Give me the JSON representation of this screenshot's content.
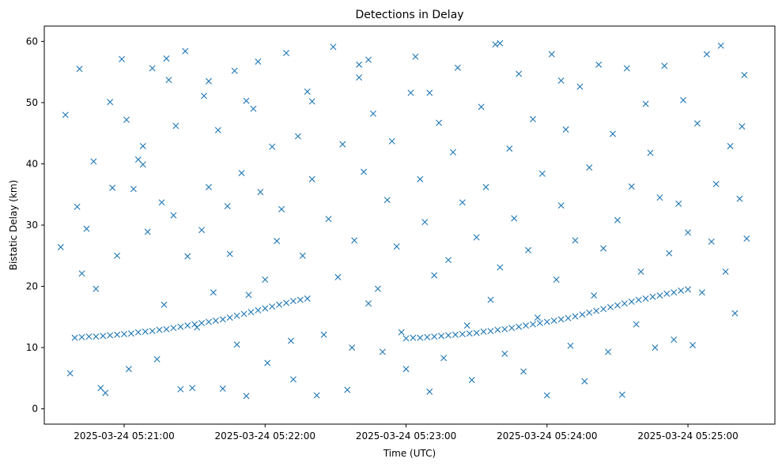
{
  "chart_data": {
    "type": "scatter",
    "title": "Detections in Delay",
    "xlabel": "Time (UTC)",
    "ylabel": "Bistatic Delay (km)",
    "x_unit": "time",
    "xlim": [
      "2025-03-24 05:20:26",
      "2025-03-24 05:25:37"
    ],
    "ylim": [
      -2.5,
      62.5
    ],
    "xticks": [
      "2025-03-24 05:21:00",
      "2025-03-24 05:22:00",
      "2025-03-24 05:23:00",
      "2025-03-24 05:24:00",
      "2025-03-24 05:25:00"
    ],
    "yticks": [
      0,
      10,
      20,
      30,
      40,
      50,
      60
    ],
    "grid": false,
    "marker": "x",
    "marker_color": "#1f77b4",
    "series": [
      {
        "points": [
          [
            "05:20:39",
            11.6
          ],
          [
            "05:20:42",
            11.7
          ],
          [
            "05:20:45",
            11.8
          ],
          [
            "05:20:48",
            11.8
          ],
          [
            "05:20:51",
            11.9
          ],
          [
            "05:20:54",
            12.0
          ],
          [
            "05:20:57",
            12.1
          ],
          [
            "05:21:00",
            12.2
          ],
          [
            "05:21:03",
            12.3
          ],
          [
            "05:21:06",
            12.5
          ],
          [
            "05:21:09",
            12.6
          ],
          [
            "05:21:12",
            12.7
          ],
          [
            "05:21:15",
            12.9
          ],
          [
            "05:21:18",
            13.0
          ],
          [
            "05:21:21",
            13.2
          ],
          [
            "05:21:24",
            13.4
          ],
          [
            "05:21:27",
            13.6
          ],
          [
            "05:21:30",
            13.8
          ],
          [
            "05:21:33",
            14.0
          ],
          [
            "05:21:36",
            14.2
          ],
          [
            "05:21:39",
            14.4
          ],
          [
            "05:21:42",
            14.6
          ],
          [
            "05:21:45",
            14.9
          ],
          [
            "05:21:48",
            15.2
          ],
          [
            "05:21:51",
            15.5
          ],
          [
            "05:21:54",
            15.8
          ],
          [
            "05:21:57",
            16.1
          ],
          [
            "05:22:00",
            16.4
          ],
          [
            "05:22:03",
            16.7
          ],
          [
            "05:22:06",
            17.0
          ],
          [
            "05:22:09",
            17.3
          ],
          [
            "05:22:12",
            17.6
          ],
          [
            "05:22:15",
            17.8
          ],
          [
            "05:22:18",
            18.0
          ],
          [
            "05:23:00",
            11.5
          ],
          [
            "05:23:03",
            11.6
          ],
          [
            "05:23:06",
            11.6
          ],
          [
            "05:23:09",
            11.7
          ],
          [
            "05:23:12",
            11.8
          ],
          [
            "05:23:15",
            11.9
          ],
          [
            "05:23:18",
            12.0
          ],
          [
            "05:23:21",
            12.1
          ],
          [
            "05:23:24",
            12.2
          ],
          [
            "05:23:27",
            12.3
          ],
          [
            "05:23:30",
            12.4
          ],
          [
            "05:23:33",
            12.6
          ],
          [
            "05:23:36",
            12.7
          ],
          [
            "05:23:39",
            12.9
          ],
          [
            "05:23:42",
            13.0
          ],
          [
            "05:23:45",
            13.2
          ],
          [
            "05:23:48",
            13.4
          ],
          [
            "05:23:51",
            13.6
          ],
          [
            "05:23:54",
            13.8
          ],
          [
            "05:23:57",
            14.0
          ],
          [
            "05:24:00",
            14.2
          ],
          [
            "05:24:03",
            14.4
          ],
          [
            "05:24:06",
            14.6
          ],
          [
            "05:24:09",
            14.8
          ],
          [
            "05:24:12",
            15.1
          ],
          [
            "05:24:15",
            15.4
          ],
          [
            "05:24:18",
            15.7
          ],
          [
            "05:24:21",
            16.0
          ],
          [
            "05:24:24",
            16.3
          ],
          [
            "05:24:27",
            16.6
          ],
          [
            "05:24:30",
            16.9
          ],
          [
            "05:24:33",
            17.2
          ],
          [
            "05:24:36",
            17.5
          ],
          [
            "05:24:39",
            17.8
          ],
          [
            "05:24:42",
            18.0
          ],
          [
            "05:24:45",
            18.3
          ],
          [
            "05:24:48",
            18.5
          ],
          [
            "05:24:51",
            18.8
          ],
          [
            "05:24:54",
            19.0
          ],
          [
            "05:24:57",
            19.3
          ],
          [
            "05:25:00",
            19.5
          ],
          [
            "05:20:33",
            26.4
          ],
          [
            "05:20:35",
            48.0
          ],
          [
            "05:20:37",
            5.8
          ],
          [
            "05:20:40",
            33.0
          ],
          [
            "05:20:41",
            55.5
          ],
          [
            "05:20:42",
            22.1
          ],
          [
            "05:20:44",
            29.4
          ],
          [
            "05:20:47",
            40.4
          ],
          [
            "05:20:48",
            19.6
          ],
          [
            "05:20:50",
            3.4
          ],
          [
            "05:20:52",
            2.6
          ],
          [
            "05:20:54",
            50.1
          ],
          [
            "05:20:55",
            36.1
          ],
          [
            "05:20:57",
            25.0
          ],
          [
            "05:20:59",
            57.1
          ],
          [
            "05:21:01",
            47.2
          ],
          [
            "05:21:02",
            6.5
          ],
          [
            "05:21:04",
            35.9
          ],
          [
            "05:21:06",
            40.7
          ],
          [
            "05:21:08",
            42.9
          ],
          [
            "05:21:10",
            28.9
          ],
          [
            "05:21:12",
            55.6
          ],
          [
            "05:21:14",
            8.1
          ],
          [
            "05:21:16",
            33.7
          ],
          [
            "05:21:17",
            17.0
          ],
          [
            "05:21:19",
            53.7
          ],
          [
            "05:21:21",
            31.6
          ],
          [
            "05:21:22",
            46.2
          ],
          [
            "05:21:24",
            3.2
          ],
          [
            "05:21:26",
            58.4
          ],
          [
            "05:21:27",
            24.9
          ],
          [
            "05:21:29",
            3.4
          ],
          [
            "05:21:31",
            13.3
          ],
          [
            "05:21:33",
            29.2
          ],
          [
            "05:21:34",
            51.1
          ],
          [
            "05:21:36",
            36.2
          ],
          [
            "05:21:38",
            19.0
          ],
          [
            "05:21:40",
            45.5
          ],
          [
            "05:21:42",
            3.3
          ],
          [
            "05:21:44",
            33.1
          ],
          [
            "05:21:45",
            25.3
          ],
          [
            "05:21:47",
            55.2
          ],
          [
            "05:21:48",
            10.5
          ],
          [
            "05:21:50",
            38.5
          ],
          [
            "05:21:52",
            2.1
          ],
          [
            "05:21:53",
            18.6
          ],
          [
            "05:21:55",
            49.0
          ],
          [
            "05:21:57",
            56.7
          ],
          [
            "05:21:58",
            35.4
          ],
          [
            "05:22:00",
            21.1
          ],
          [
            "05:22:01",
            7.5
          ],
          [
            "05:22:03",
            42.8
          ],
          [
            "05:22:05",
            27.4
          ],
          [
            "05:22:07",
            32.6
          ],
          [
            "05:22:09",
            58.1
          ],
          [
            "05:22:11",
            11.1
          ],
          [
            "05:22:12",
            4.8
          ],
          [
            "05:22:14",
            44.5
          ],
          [
            "05:22:16",
            25.0
          ],
          [
            "05:22:18",
            51.8
          ],
          [
            "05:22:20",
            37.5
          ],
          [
            "05:22:22",
            2.2
          ],
          [
            "05:22:25",
            12.1
          ],
          [
            "05:22:27",
            31.0
          ],
          [
            "05:22:29",
            59.1
          ],
          [
            "05:22:31",
            21.5
          ],
          [
            "05:22:33",
            43.2
          ],
          [
            "05:22:35",
            3.1
          ],
          [
            "05:22:37",
            10.0
          ],
          [
            "05:22:38",
            27.5
          ],
          [
            "05:22:40",
            56.2
          ],
          [
            "05:22:42",
            38.7
          ],
          [
            "05:22:44",
            17.2
          ],
          [
            "05:22:46",
            48.2
          ],
          [
            "05:22:48",
            19.6
          ],
          [
            "05:22:50",
            9.3
          ],
          [
            "05:22:52",
            34.1
          ],
          [
            "05:22:54",
            43.7
          ],
          [
            "05:22:56",
            26.5
          ],
          [
            "05:22:58",
            12.5
          ],
          [
            "05:23:00",
            6.5
          ],
          [
            "05:23:02",
            51.6
          ],
          [
            "05:23:04",
            57.5
          ],
          [
            "05:23:06",
            37.5
          ],
          [
            "05:23:08",
            30.5
          ],
          [
            "05:23:10",
            2.8
          ],
          [
            "05:23:12",
            21.8
          ],
          [
            "05:23:14",
            46.7
          ],
          [
            "05:23:16",
            8.3
          ],
          [
            "05:23:18",
            24.3
          ],
          [
            "05:23:20",
            41.9
          ],
          [
            "05:23:22",
            55.7
          ],
          [
            "05:23:24",
            33.7
          ],
          [
            "05:23:26",
            13.6
          ],
          [
            "05:23:28",
            4.7
          ],
          [
            "05:23:30",
            28.0
          ],
          [
            "05:23:32",
            49.3
          ],
          [
            "05:23:34",
            36.2
          ],
          [
            "05:23:36",
            17.8
          ],
          [
            "05:23:38",
            59.5
          ],
          [
            "05:23:40",
            23.1
          ],
          [
            "05:23:42",
            9.0
          ],
          [
            "05:23:44",
            42.5
          ],
          [
            "05:23:46",
            31.1
          ],
          [
            "05:23:48",
            54.7
          ],
          [
            "05:23:50",
            6.1
          ],
          [
            "05:23:52",
            25.9
          ],
          [
            "05:23:54",
            47.3
          ],
          [
            "05:23:56",
            14.9
          ],
          [
            "05:23:58",
            38.4
          ],
          [
            "05:24:00",
            2.2
          ],
          [
            "05:24:02",
            57.9
          ],
          [
            "05:24:04",
            21.1
          ],
          [
            "05:24:06",
            33.2
          ],
          [
            "05:24:08",
            45.6
          ],
          [
            "05:24:10",
            10.3
          ],
          [
            "05:24:12",
            27.5
          ],
          [
            "05:24:14",
            52.6
          ],
          [
            "05:24:16",
            4.5
          ],
          [
            "05:24:18",
            39.4
          ],
          [
            "05:24:20",
            18.5
          ],
          [
            "05:24:22",
            56.2
          ],
          [
            "05:24:24",
            26.2
          ],
          [
            "05:24:26",
            9.3
          ],
          [
            "05:24:28",
            44.9
          ],
          [
            "05:24:30",
            30.8
          ],
          [
            "05:24:32",
            2.3
          ],
          [
            "05:24:34",
            55.6
          ],
          [
            "05:24:36",
            36.3
          ],
          [
            "05:24:38",
            13.8
          ],
          [
            "05:24:40",
            22.4
          ],
          [
            "05:24:42",
            49.8
          ],
          [
            "05:24:44",
            41.8
          ],
          [
            "05:24:46",
            10.0
          ],
          [
            "05:24:48",
            34.5
          ],
          [
            "05:24:50",
            56.0
          ],
          [
            "05:24:52",
            25.4
          ],
          [
            "05:24:54",
            11.3
          ],
          [
            "05:24:56",
            33.5
          ],
          [
            "05:24:58",
            50.4
          ],
          [
            "05:25:00",
            28.8
          ],
          [
            "05:25:02",
            10.4
          ],
          [
            "05:25:04",
            46.6
          ],
          [
            "05:25:06",
            19.0
          ],
          [
            "05:25:08",
            57.9
          ],
          [
            "05:25:10",
            27.3
          ],
          [
            "05:25:12",
            36.7
          ],
          [
            "05:25:14",
            59.3
          ],
          [
            "05:25:16",
            22.4
          ],
          [
            "05:25:18",
            42.9
          ],
          [
            "05:25:20",
            15.6
          ],
          [
            "05:25:22",
            34.3
          ],
          [
            "05:25:24",
            54.5
          ],
          [
            "05:25:25",
            27.8
          ],
          [
            "05:25:23",
            46.1
          ],
          [
            "05:21:18",
            57.2
          ],
          [
            "05:21:36",
            53.5
          ],
          [
            "05:22:44",
            57.0
          ],
          [
            "05:23:40",
            59.7
          ],
          [
            "05:22:40",
            54.1
          ],
          [
            "05:21:08",
            39.9
          ],
          [
            "05:21:52",
            50.3
          ],
          [
            "05:22:20",
            50.2
          ],
          [
            "05:23:10",
            51.6
          ],
          [
            "05:24:06",
            53.6
          ]
        ]
      }
    ]
  }
}
